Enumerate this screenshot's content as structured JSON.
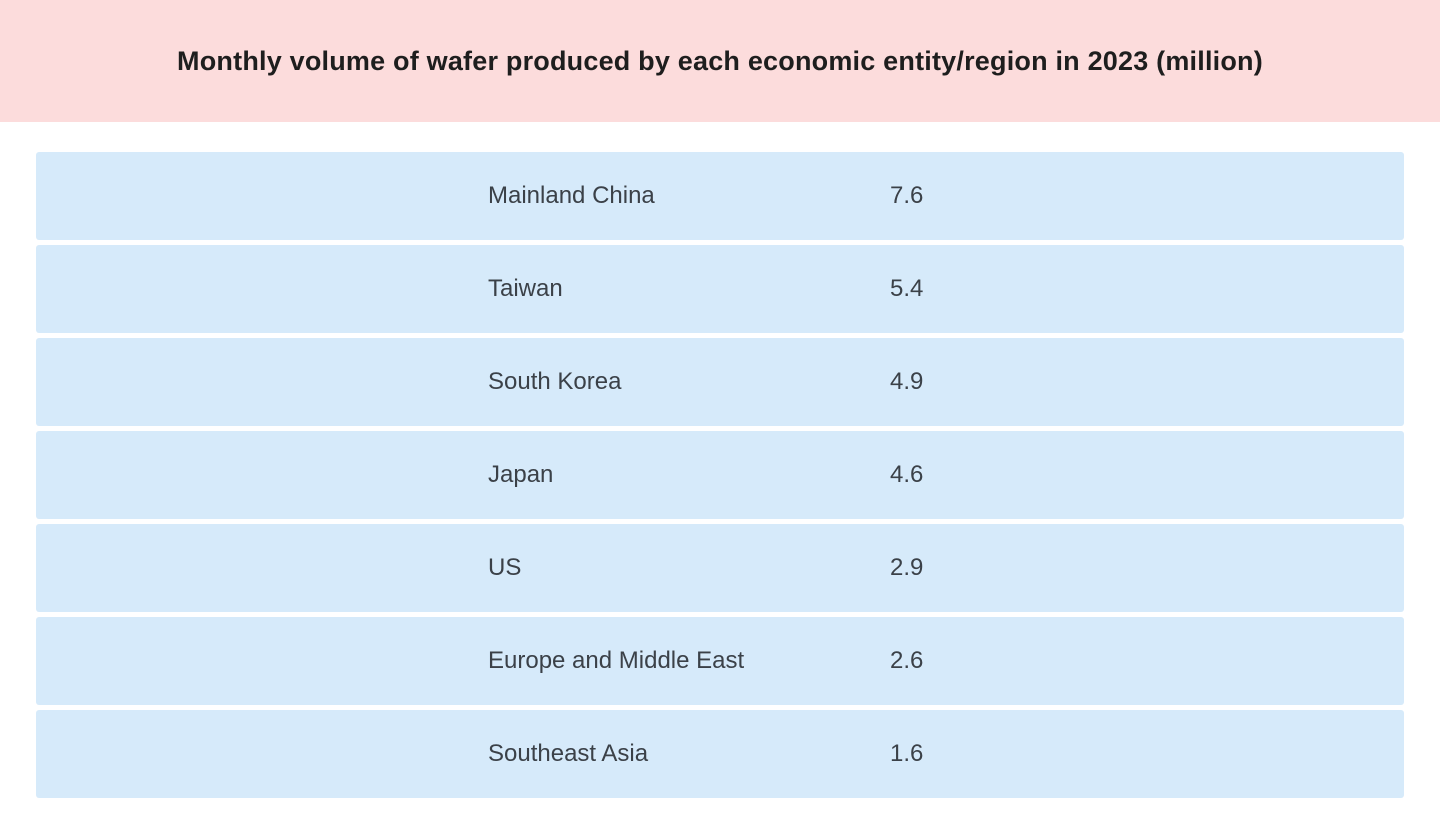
{
  "title": "Monthly volume of wafer produced by each economic entity/region in 2023 (million)",
  "colors": {
    "banner_bg": "#fcdcdc",
    "row_bg": "#d6eafa",
    "title_text": "#1e1e1e",
    "row_text": "#3b4148"
  },
  "chart_data": {
    "type": "table",
    "title": "Monthly volume of wafer produced by each economic entity/region in 2023 (million)",
    "categories": [
      "Mainland China",
      "Taiwan",
      "South Korea",
      "Japan",
      "US",
      "Europe and Middle East",
      "Southeast Asia"
    ],
    "values": [
      7.6,
      5.4,
      4.9,
      4.6,
      2.9,
      2.6,
      1.6
    ],
    "unit": "million wafers per month",
    "year": "2023"
  },
  "rows": [
    {
      "label": "Mainland China",
      "value": "7.6"
    },
    {
      "label": "Taiwan",
      "value": "5.4"
    },
    {
      "label": "South Korea",
      "value": "4.9"
    },
    {
      "label": "Japan",
      "value": "4.6"
    },
    {
      "label": "US",
      "value": "2.9"
    },
    {
      "label": "Europe and Middle East",
      "value": "2.6"
    },
    {
      "label": "Southeast Asia",
      "value": "1.6"
    }
  ]
}
